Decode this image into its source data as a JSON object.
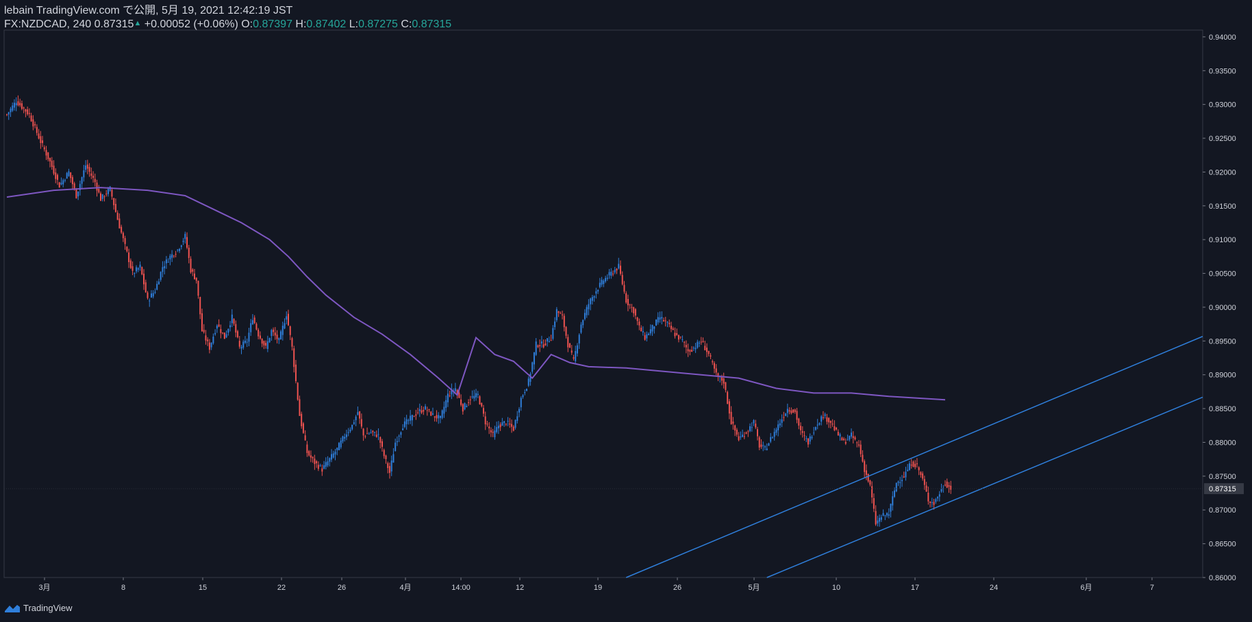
{
  "header": {
    "publisher": "lebain TradingView.com で公開, 5月 19, 2021 12:42:19 JST",
    "symbol": "FX:NZDCAD, 240",
    "last": "0.87315",
    "arrow": "▲",
    "change": "+0.00052 (+0.06%)",
    "o_label": "O:",
    "o_value": "0.87397",
    "h_label": "H:",
    "h_value": "0.87402",
    "l_label": "L:",
    "l_value": "0.87275",
    "c_label": "C:",
    "c_value": "0.87315"
  },
  "footer": {
    "brand": "TradingView"
  },
  "colors": {
    "background": "#131722",
    "up": "#2f7fdb",
    "down": "#ef5350",
    "ma": "#7e57c2",
    "trendline": "#2f7fdb",
    "last_price_label": "#363a45"
  },
  "chart_data": {
    "type": "candlestick",
    "symbol": "FX:NZDCAD",
    "interval": "240",
    "ylim": [
      0.86,
      0.941
    ],
    "y_ticks": [
      "0.86000",
      "0.86500",
      "0.87000",
      "0.87500",
      "0.88000",
      "0.88500",
      "0.89000",
      "0.89500",
      "0.90000",
      "0.90500",
      "0.91000",
      "0.91500",
      "0.92000",
      "0.92500",
      "0.93000",
      "0.93500",
      "0.94000"
    ],
    "x_ticks": [
      "3月",
      "8",
      "15",
      "22",
      "26",
      "4月",
      "14:00",
      "12",
      "19",
      "26",
      "5月",
      "10",
      "17",
      "24",
      "6月",
      "7"
    ],
    "last_price": "0.87315",
    "price_path": [
      [
        0,
        0.9285
      ],
      [
        5,
        0.9305
      ],
      [
        12,
        0.9285
      ],
      [
        18,
        0.9245
      ],
      [
        23,
        0.9215
      ],
      [
        28,
        0.918
      ],
      [
        33,
        0.92
      ],
      [
        37,
        0.9165
      ],
      [
        42,
        0.921
      ],
      [
        47,
        0.9185
      ],
      [
        50,
        0.916
      ],
      [
        55,
        0.9175
      ],
      [
        59,
        0.913
      ],
      [
        63,
        0.909
      ],
      [
        67,
        0.905
      ],
      [
        71,
        0.906
      ],
      [
        75,
        0.901
      ],
      [
        79,
        0.9025
      ],
      [
        83,
        0.906
      ],
      [
        87,
        0.9075
      ],
      [
        91,
        0.9085
      ],
      [
        95,
        0.9105
      ],
      [
        98,
        0.9055
      ],
      [
        101,
        0.904
      ],
      [
        104,
        0.8965
      ],
      [
        108,
        0.894
      ],
      [
        112,
        0.8975
      ],
      [
        116,
        0.8955
      ],
      [
        120,
        0.8985
      ],
      [
        124,
        0.894
      ],
      [
        128,
        0.895
      ],
      [
        131,
        0.8985
      ],
      [
        134,
        0.896
      ],
      [
        138,
        0.894
      ],
      [
        141,
        0.8965
      ],
      [
        145,
        0.895
      ],
      [
        149,
        0.899
      ],
      [
        152,
        0.894
      ],
      [
        156,
        0.884
      ],
      [
        160,
        0.8785
      ],
      [
        164,
        0.877
      ],
      [
        168,
        0.876
      ],
      [
        172,
        0.8775
      ],
      [
        176,
        0.879
      ],
      [
        180,
        0.881
      ],
      [
        184,
        0.8825
      ],
      [
        187,
        0.8845
      ],
      [
        190,
        0.881
      ],
      [
        194,
        0.8815
      ],
      [
        198,
        0.881
      ],
      [
        201,
        0.878
      ],
      [
        204,
        0.8755
      ],
      [
        207,
        0.88
      ],
      [
        211,
        0.8825
      ],
      [
        215,
        0.8835
      ],
      [
        219,
        0.8845
      ],
      [
        223,
        0.885
      ],
      [
        227,
        0.884
      ],
      [
        231,
        0.8835
      ],
      [
        235,
        0.887
      ],
      [
        239,
        0.888
      ],
      [
        243,
        0.885
      ],
      [
        247,
        0.8865
      ],
      [
        251,
        0.887
      ],
      [
        255,
        0.883
      ],
      [
        259,
        0.881
      ],
      [
        262,
        0.8825
      ],
      [
        266,
        0.883
      ],
      [
        270,
        0.882
      ],
      [
        274,
        0.8865
      ],
      [
        278,
        0.889
      ],
      [
        282,
        0.8945
      ],
      [
        286,
        0.8945
      ],
      [
        290,
        0.8955
      ],
      [
        293,
        0.8995
      ],
      [
        296,
        0.8985
      ],
      [
        299,
        0.8945
      ],
      [
        302,
        0.892
      ],
      [
        306,
        0.8975
      ],
      [
        310,
        0.9005
      ],
      [
        314,
        0.9025
      ],
      [
        318,
        0.904
      ],
      [
        322,
        0.905
      ],
      [
        326,
        0.906
      ],
      [
        330,
        0.901
      ],
      [
        334,
        0.8995
      ],
      [
        337,
        0.897
      ],
      [
        340,
        0.8955
      ],
      [
        344,
        0.897
      ],
      [
        348,
        0.8985
      ],
      [
        352,
        0.8975
      ],
      [
        356,
        0.896
      ],
      [
        360,
        0.895
      ],
      [
        363,
        0.8935
      ],
      [
        366,
        0.894
      ],
      [
        370,
        0.895
      ],
      [
        374,
        0.893
      ],
      [
        378,
        0.89
      ],
      [
        382,
        0.889
      ],
      [
        386,
        0.883
      ],
      [
        390,
        0.8805
      ],
      [
        394,
        0.8815
      ],
      [
        398,
        0.883
      ],
      [
        401,
        0.8795
      ],
      [
        404,
        0.879
      ],
      [
        408,
        0.881
      ],
      [
        412,
        0.883
      ],
      [
        416,
        0.885
      ],
      [
        420,
        0.8845
      ],
      [
        423,
        0.8815
      ],
      [
        427,
        0.88
      ],
      [
        431,
        0.8825
      ],
      [
        435,
        0.884
      ],
      [
        439,
        0.883
      ],
      [
        442,
        0.8815
      ],
      [
        446,
        0.88
      ],
      [
        450,
        0.881
      ],
      [
        454,
        0.8795
      ],
      [
        457,
        0.876
      ],
      [
        460,
        0.8735
      ],
      [
        463,
        0.868
      ],
      [
        466,
        0.869
      ],
      [
        470,
        0.8695
      ],
      [
        474,
        0.874
      ],
      [
        478,
        0.875
      ],
      [
        482,
        0.877
      ],
      [
        485,
        0.8765
      ],
      [
        488,
        0.8745
      ],
      [
        491,
        0.8715
      ],
      [
        494,
        0.871
      ],
      [
        497,
        0.8725
      ],
      [
        500,
        0.874
      ],
      [
        503,
        0.87315
      ]
    ],
    "moving_average": [
      [
        0,
        0.9163
      ],
      [
        25,
        0.9173
      ],
      [
        50,
        0.9177
      ],
      [
        75,
        0.9173
      ],
      [
        95,
        0.9165
      ],
      [
        110,
        0.9145
      ],
      [
        125,
        0.9125
      ],
      [
        140,
        0.91
      ],
      [
        150,
        0.9075
      ],
      [
        160,
        0.9045
      ],
      [
        170,
        0.9018
      ],
      [
        185,
        0.8985
      ],
      [
        200,
        0.896
      ],
      [
        215,
        0.893
      ],
      [
        230,
        0.8895
      ],
      [
        240,
        0.887
      ],
      [
        250,
        0.8955
      ],
      [
        260,
        0.893
      ],
      [
        270,
        0.892
      ],
      [
        280,
        0.8895
      ],
      [
        290,
        0.893
      ],
      [
        300,
        0.8918
      ],
      [
        310,
        0.8912
      ],
      [
        330,
        0.891
      ],
      [
        350,
        0.8905
      ],
      [
        370,
        0.89
      ],
      [
        390,
        0.8895
      ],
      [
        410,
        0.888
      ],
      [
        430,
        0.8873
      ],
      [
        450,
        0.8873
      ],
      [
        470,
        0.8868
      ],
      [
        500,
        0.8863
      ]
    ],
    "trendlines": [
      {
        "x1": 330,
        "y1": 0.86,
        "x2": 640,
        "y2": 0.896
      },
      {
        "x1": 405,
        "y1": 0.86,
        "x2": 640,
        "y2": 0.887
      }
    ]
  }
}
